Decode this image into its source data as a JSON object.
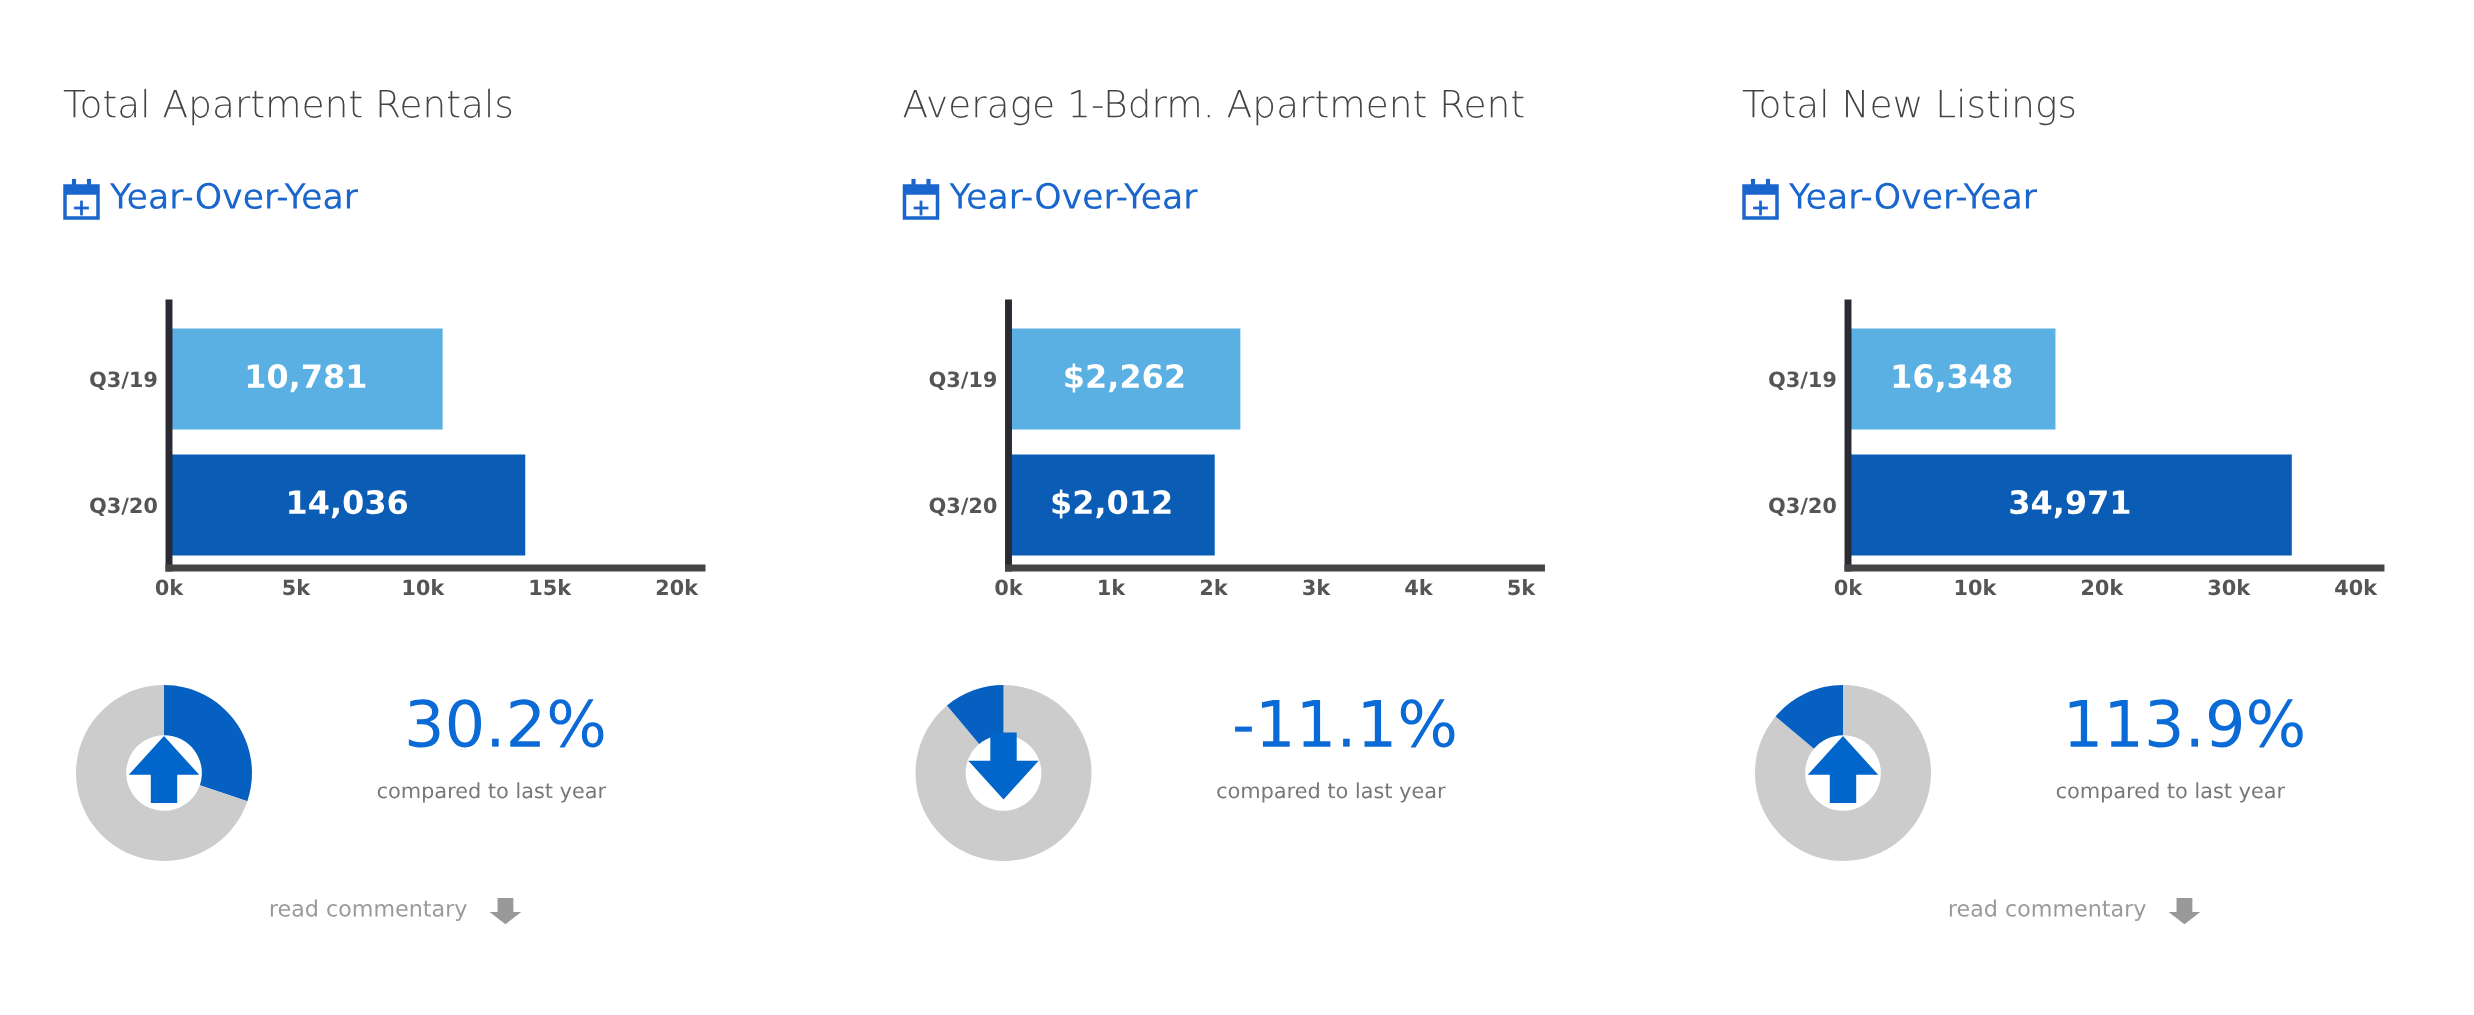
{
  "chart_data": [
    {
      "type": "bar",
      "orientation": "horizontal",
      "title": "Total Apartment Rentals",
      "subtitle": "Year-Over-Year",
      "categories": [
        "Q3/19",
        "Q3/20"
      ],
      "values": [
        10781,
        14036
      ],
      "colors": [
        "#5aafe3",
        "#0a5cb4"
      ],
      "value_labels": [
        "10,781",
        "14,036"
      ],
      "xlim": [
        0,
        21000
      ],
      "xticks": [
        {
          "value": 0,
          "label": "0k"
        },
        {
          "value": 5000,
          "label": "5k"
        },
        {
          "value": 10000,
          "label": "10k"
        },
        {
          "value": 15000,
          "label": "15k"
        },
        {
          "value": 20000,
          "label": "20k"
        }
      ]
    },
    {
      "type": "bar",
      "orientation": "horizontal",
      "title": "Average 1-Bdrm. Apartment Rent",
      "subtitle": "Year-Over-Year",
      "categories": [
        "Q3/19",
        "Q3/20"
      ],
      "values": [
        2262,
        2012
      ],
      "colors": [
        "#5aafe3",
        "#0a5cb4"
      ],
      "value_labels": [
        "$2,262",
        "$2,012"
      ],
      "xlim": [
        0,
        5200
      ],
      "xticks": [
        {
          "value": 0,
          "label": "0k"
        },
        {
          "value": 1000,
          "label": "1k"
        },
        {
          "value": 2000,
          "label": "2k"
        },
        {
          "value": 3000,
          "label": "3k"
        },
        {
          "value": 4000,
          "label": "4k"
        },
        {
          "value": 5000,
          "label": "5k"
        }
      ]
    },
    {
      "type": "bar",
      "orientation": "horizontal",
      "title": "Total New Listings",
      "subtitle": "Year-Over-Year",
      "categories": [
        "Q3/19",
        "Q3/20"
      ],
      "values": [
        16348,
        34971
      ],
      "colors": [
        "#5aafe3",
        "#0a5cb4"
      ],
      "value_labels": [
        "16,348",
        "34,971"
      ],
      "xlim": [
        0,
        42000
      ],
      "xticks": [
        {
          "value": 0,
          "label": "0k"
        },
        {
          "value": 10000,
          "label": "10k"
        },
        {
          "value": 20000,
          "label": "20k"
        },
        {
          "value": 30000,
          "label": "30k"
        },
        {
          "value": 40000,
          "label": "40k"
        }
      ]
    },
    {
      "type": "donut",
      "categories": [
        null,
        null
      ],
      "values": [
        30.2,
        69.8
      ],
      "colors": [
        "#0560c2",
        "#cccccc"
      ],
      "annotations": [
        "30.2%",
        "compared to last year",
        "read commentary"
      ]
    },
    {
      "type": "donut",
      "categories": [
        null,
        null
      ],
      "values": [
        88.9,
        11.1
      ],
      "colors": [
        "#cccccc",
        "#0560c2"
      ],
      "annotations": [
        "-11.1%",
        "compared to last year"
      ]
    },
    {
      "type": "donut",
      "categories": [
        null,
        null
      ],
      "values": [
        86.1,
        13.9
      ],
      "colors": [
        "#cccccc",
        "#0560c2"
      ],
      "annotations": [
        "113.9%",
        "compared to last year",
        "read commentary"
      ]
    }
  ]
}
